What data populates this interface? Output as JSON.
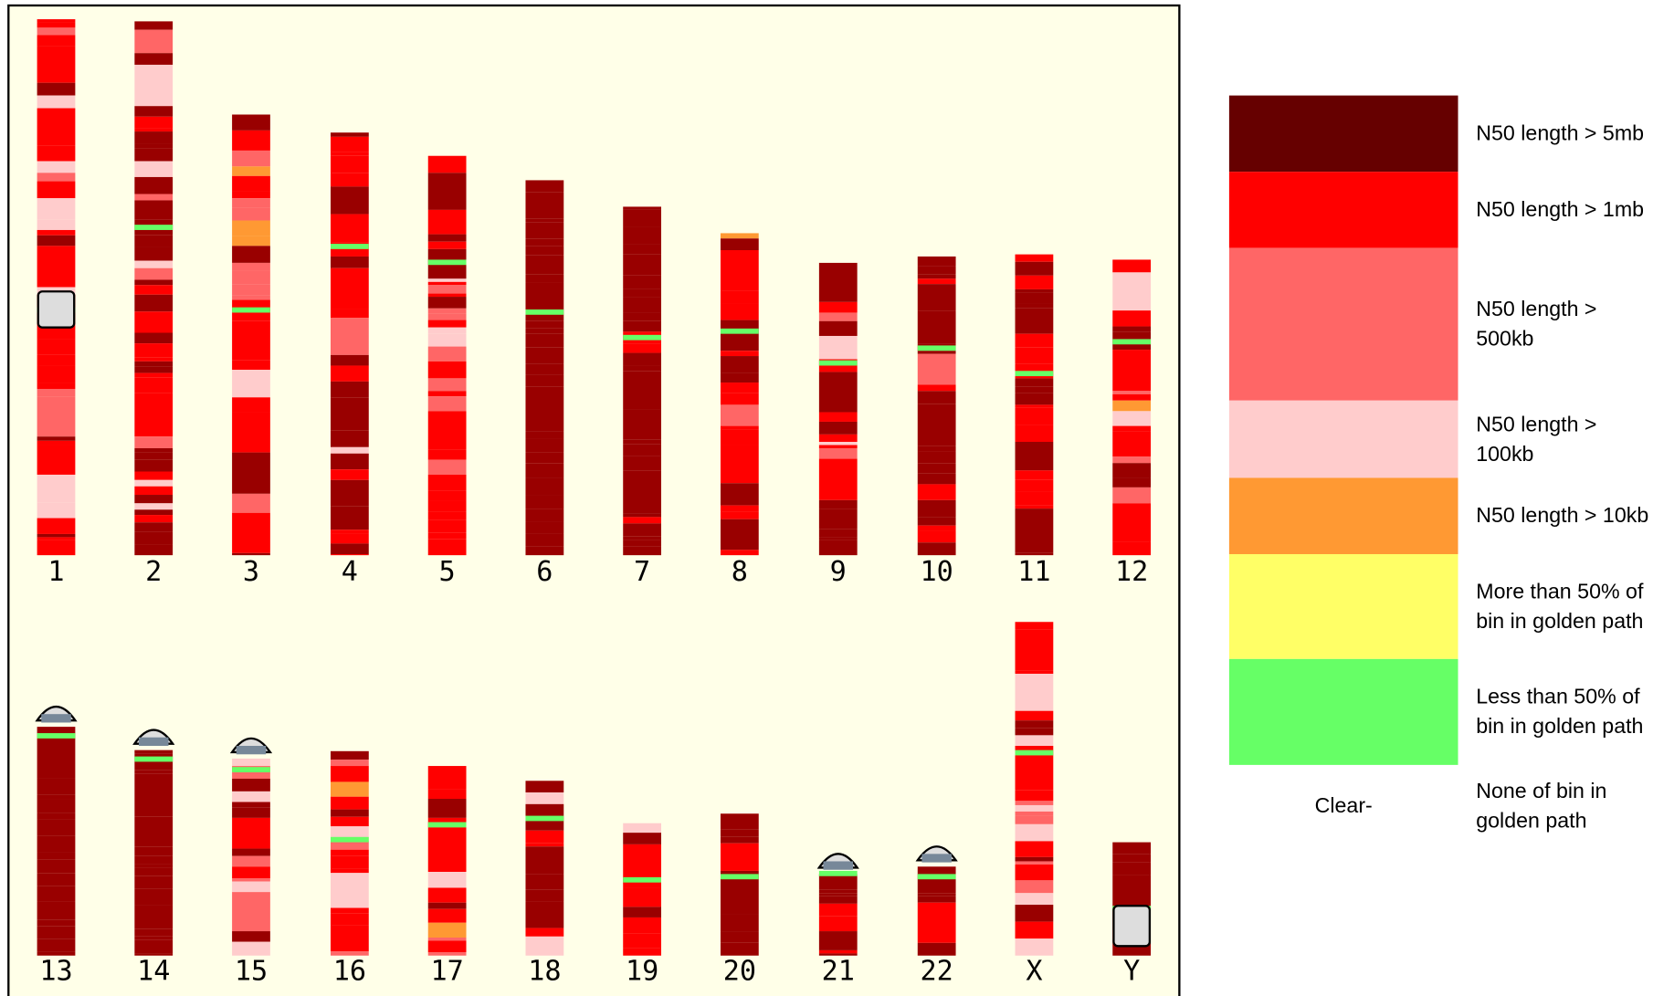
{
  "chromosomes": [
    "1",
    "2",
    "3",
    "4",
    "5",
    "6",
    "7",
    "8",
    "9",
    "10",
    "11",
    "12",
    "13",
    "14",
    "15",
    "16",
    "17",
    "18",
    "19",
    "20",
    "21",
    "22",
    "X",
    "Y"
  ],
  "legend": {
    "items": [
      {
        "label": "N50 length > 5mb",
        "color": "#660000"
      },
      {
        "label": "N50 length > 1mb",
        "color": "#ff0000"
      },
      {
        "label": "N50 length > 500kb",
        "color": "#ff6666"
      },
      {
        "label": "N50 length > 100kb",
        "color": "#ffcccc"
      },
      {
        "label": "N50 length > 10kb",
        "color": "#ff9933"
      },
      {
        "label": "More than 50% of bin in golden path",
        "color": "#ffff66"
      },
      {
        "label": "Less than 50% of bin in golden path",
        "color": "#66ff66"
      },
      {
        "label": "None of bin in golden path",
        "swatch_label": "Clear-"
      }
    ]
  }
}
